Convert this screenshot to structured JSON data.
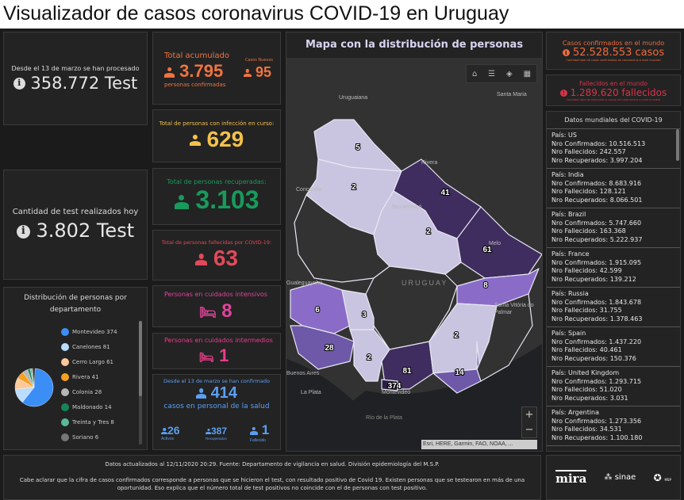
{
  "header": {
    "title": "Visualizador de casos coronavirus COVID-19 en Uruguay"
  },
  "tests_total": {
    "label": "Desde el 13 de marzo se han procesado",
    "value": "358.772 Test"
  },
  "tests_today": {
    "label": "Cantidad de test realizados hoy",
    "value": "3.802 Test"
  },
  "distribution": {
    "title": "Distribución de personas por departamento",
    "items": [
      {
        "name": "Montevideo",
        "value": 374,
        "label": "Montevideo  374",
        "color": "#3a8ef6"
      },
      {
        "name": "Canelones",
        "value": 81,
        "label": "Canelones  81",
        "color": "#b9dcff"
      },
      {
        "name": "Cerro Largo",
        "value": 61,
        "label": "Cerro Largo  61",
        "color": "#ffc99a"
      },
      {
        "name": "Rivera",
        "value": 41,
        "label": "Rivera  41",
        "color": "#f5a020"
      },
      {
        "name": "Colonia",
        "value": 28,
        "label": "Colonia  28",
        "color": "#b5b5b5"
      },
      {
        "name": "Maldonado",
        "value": 14,
        "label": "Maldonado  14",
        "color": "#16855a"
      },
      {
        "name": "Treinta y Tres",
        "value": 8,
        "label": "Treinta y Tres  8",
        "color": "#5bb89a"
      },
      {
        "name": "Soriano",
        "value": 6,
        "label": "Soriano  6",
        "color": "#777777"
      }
    ]
  },
  "accumulated": {
    "label": "Total acumulado",
    "value": "3.795",
    "sub": "personas confirmadas",
    "new_label": "Casos Nuevos",
    "new_value": "95"
  },
  "active": {
    "label": "Total de personas con infección en curso:",
    "value": "629"
  },
  "recovered": {
    "label": "Total de personas recuperadas:",
    "value": "3.103"
  },
  "deceased": {
    "label": "Total de personas fallecidas por COVID-19:",
    "value": "63"
  },
  "intensive": {
    "label": "Personas en cuidados intensivos",
    "value": "8"
  },
  "intermediate": {
    "label": "Personas en cuidados intermedios",
    "value": "1"
  },
  "health": {
    "label": "Desde el 13 de marzo se han confirmado",
    "value": "414",
    "sub": "casos en personal de la salud",
    "active": "26",
    "active_label": "Activos",
    "recovered": "387",
    "recovered_label": "Recuperados",
    "deceased": "1",
    "deceased_label": "Fallecido"
  },
  "map": {
    "title": "Mapa con la distribución de personas",
    "places": [
      "Uruguaiana",
      "Santa Maria",
      "Rivera",
      "Concordia",
      "Tacuarembó",
      "Melo",
      "URUGUAY",
      "Gualeguaychú",
      "Santa Vitória do Palmar",
      "Buenos Aires",
      "La Plata",
      "Montevideo",
      "Río de la Plata"
    ],
    "departments": [
      {
        "name": "Artigas",
        "value": "5"
      },
      {
        "name": "Salto",
        "value": "2"
      },
      {
        "name": "Rivera",
        "value": "41"
      },
      {
        "name": "Tacuarembó",
        "value": "2"
      },
      {
        "name": "Cerro Largo",
        "value": "61"
      },
      {
        "name": "Treinta y Tres",
        "value": "8"
      },
      {
        "name": "Soriano",
        "value": "6"
      },
      {
        "name": "Flores",
        "value": "3"
      },
      {
        "name": "Colonia",
        "value": "28"
      },
      {
        "name": "San José",
        "value": "2"
      },
      {
        "name": "Canelones",
        "value": "81"
      },
      {
        "name": "Montevideo",
        "value": "374"
      },
      {
        "name": "Lavalleja",
        "value": "2"
      },
      {
        "name": "Maldonado",
        "value": "14"
      }
    ],
    "attribution": "Esri, HERE, Garmin, FAO, NOAA, ...",
    "zoom_in": "+",
    "zoom_out": "−"
  },
  "world_cases": {
    "label": "Casos confirmados en el mundo",
    "value": "52.528.553 casos",
    "sub": "Cantidad total de casos confirmados de coronavirus a nivel mundial"
  },
  "world_deaths": {
    "label": "Fallecidos en el mundo",
    "value": "1.289.620 fallecidos",
    "sub": "Cantidad total de fallecidos a causa del coronavirus a nivel mundial"
  },
  "world_list": {
    "title": "Datos mundiales del COVID-19",
    "items": [
      {
        "pais": "País: US",
        "conf": "Nro Confirmados: 10.516.513",
        "fall": "Nro Fallecidos: 242.557",
        "rec": "Nro Recuperados: 3.997.204"
      },
      {
        "pais": "País: India",
        "conf": "Nro Confirmados: 8.683.916",
        "fall": "Nro Fallecidos: 128.121",
        "rec": "Nro Recuperados: 8.066.501"
      },
      {
        "pais": "País: Brazil",
        "conf": "Nro Confirmados: 5.747.660",
        "fall": "Nro Fallecidos: 163.368",
        "rec": "Nro Recuperados: 5.222.937"
      },
      {
        "pais": "País: France",
        "conf": "Nro Confirmados: 1.915.095",
        "fall": "Nro Fallecidos: 42.599",
        "rec": "Nro Recuperados: 139.212"
      },
      {
        "pais": "País: Russia",
        "conf": "Nro Confirmados: 1.843.678",
        "fall": "Nro Fallecidos: 31.755",
        "rec": "Nro Recuperados: 1.378.463"
      },
      {
        "pais": "País: Spain",
        "conf": "Nro Confirmados: 1.437.220",
        "fall": "Nro Fallecidos: 40.461",
        "rec": "Nro Recuperados: 150.376"
      },
      {
        "pais": "País: United Kingdom",
        "conf": "Nro Confirmados: 1.293.715",
        "fall": "Nro Fallecidos: 51.020",
        "rec": "Nro Recuperados: 3.031"
      },
      {
        "pais": "País: Argentina",
        "conf": "Nro Confirmados: 1.273.356",
        "fall": "Nro Fallecidos: 34.531",
        "rec": "Nro Recuperados: 1.100.180"
      }
    ]
  },
  "footer": {
    "line1": "Datos actualizados al 12/11/2020 20:29. Fuente: Departamento de vigilancia en salud. División epidemiología del M.S.P.",
    "line2": "Cabe aclarar que la cifra de casos confirmados corresponde a personas que se hicieron el test, con resultado positivo de Covid 19. Existen personas que se testearon en más de una oportunidad. Eso explica que el número total de test positivos no coincide con el de personas con test positivo.",
    "logos": [
      "mira",
      "sinae",
      "Ministerio de Salud Pública"
    ]
  }
}
